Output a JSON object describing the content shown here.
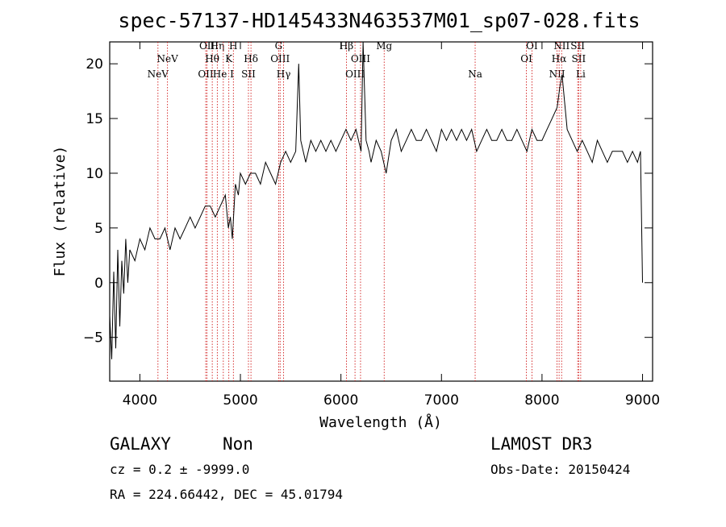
{
  "chart_data": {
    "type": "line",
    "title": "spec-57137-HD145433N463537M01_sp07-028.fits",
    "xlabel": "Wavelength (Å)",
    "ylabel": "Flux (relative)",
    "xlim": [
      3700,
      9100
    ],
    "ylim": [
      -9,
      22
    ],
    "xticks": [
      4000,
      5000,
      6000,
      7000,
      8000,
      9000
    ],
    "yticks": [
      -5,
      0,
      5,
      10,
      15,
      20
    ],
    "series": [
      {
        "name": "spectrum",
        "x": [
          3700,
          3720,
          3740,
          3760,
          3780,
          3800,
          3820,
          3840,
          3860,
          3880,
          3900,
          3950,
          4000,
          4050,
          4100,
          4150,
          4200,
          4250,
          4300,
          4350,
          4400,
          4450,
          4500,
          4550,
          4600,
          4650,
          4700,
          4750,
          4800,
          4850,
          4880,
          4900,
          4920,
          4950,
          4980,
          5000,
          5050,
          5100,
          5150,
          5200,
          5250,
          5300,
          5350,
          5400,
          5450,
          5500,
          5550,
          5580,
          5600,
          5650,
          5700,
          5750,
          5800,
          5850,
          5900,
          5950,
          6000,
          6050,
          6100,
          6150,
          6200,
          6220,
          6250,
          6280,
          6300,
          6350,
          6400,
          6450,
          6500,
          6550,
          6600,
          6650,
          6700,
          6750,
          6800,
          6850,
          6900,
          6950,
          7000,
          7050,
          7100,
          7150,
          7200,
          7250,
          7300,
          7350,
          7400,
          7450,
          7500,
          7550,
          7600,
          7650,
          7700,
          7750,
          7800,
          7850,
          7900,
          7950,
          8000,
          8050,
          8100,
          8150,
          8180,
          8200,
          8220,
          8250,
          8300,
          8350,
          8400,
          8450,
          8500,
          8550,
          8600,
          8650,
          8700,
          8750,
          8800,
          8850,
          8900,
          8950,
          8980,
          9000
        ],
        "y": [
          -3,
          -7,
          1,
          -6,
          3,
          -4,
          2,
          -1,
          4,
          0,
          3,
          2,
          4,
          3,
          5,
          4,
          4,
          5,
          3,
          5,
          4,
          5,
          6,
          5,
          6,
          7,
          7,
          6,
          7,
          8,
          5,
          6,
          4,
          9,
          8,
          10,
          9,
          10,
          10,
          9,
          11,
          10,
          9,
          11,
          12,
          11,
          12,
          20,
          13,
          11,
          13,
          12,
          13,
          12,
          13,
          12,
          13,
          14,
          13,
          14,
          12,
          22,
          13,
          12,
          11,
          13,
          12,
          10,
          13,
          14,
          12,
          13,
          14,
          13,
          13,
          14,
          13,
          12,
          14,
          13,
          14,
          13,
          14,
          13,
          14,
          12,
          13,
          14,
          13,
          13,
          14,
          13,
          13,
          14,
          13,
          12,
          14,
          13,
          13,
          14,
          15,
          16,
          18,
          19,
          17,
          14,
          13,
          12,
          13,
          12,
          11,
          13,
          12,
          11,
          12,
          12,
          12,
          11,
          12,
          11,
          12,
          0
        ]
      }
    ],
    "lines": [
      {
        "name": "NeV",
        "wavelength": 4180,
        "row": 3
      },
      {
        "name": "NeV",
        "wavelength": 4275,
        "row": 2
      },
      {
        "name": "OII",
        "wavelength": 4655,
        "row": 3
      },
      {
        "name": "OII",
        "wavelength": 4668,
        "row": 1
      },
      {
        "name": "Hθ",
        "wavelength": 4720,
        "row": 2
      },
      {
        "name": "Hη",
        "wavelength": 4770,
        "row": 1
      },
      {
        "name": "He I",
        "wavelength": 4830,
        "row": 3
      },
      {
        "name": "K",
        "wavelength": 4885,
        "row": 2
      },
      {
        "name": "H",
        "wavelength": 4930,
        "row": 1
      },
      {
        "name": "SII",
        "wavelength": 5080,
        "row": 3
      },
      {
        "name": "Hδ",
        "wavelength": 5105,
        "row": 2
      },
      {
        "name": "G",
        "wavelength": 5380,
        "row": 1
      },
      {
        "name": "OIII",
        "wavelength": 5395,
        "row": 2
      },
      {
        "name": "Hγ",
        "wavelength": 5430,
        "row": 3
      },
      {
        "name": "Hβ",
        "wavelength": 6055,
        "row": 1
      },
      {
        "name": "OIII",
        "wavelength": 6140,
        "row": 3
      },
      {
        "name": "OIII",
        "wavelength": 6195,
        "row": 2
      },
      {
        "name": "Mg",
        "wavelength": 6430,
        "row": 1
      },
      {
        "name": "Na",
        "wavelength": 7335,
        "row": 3
      },
      {
        "name": "OI",
        "wavelength": 7845,
        "row": 2
      },
      {
        "name": "OI",
        "wavelength": 7900,
        "row": 1
      },
      {
        "name": "NII",
        "wavelength": 8150,
        "row": 3
      },
      {
        "name": "Hα",
        "wavelength": 8170,
        "row": 2
      },
      {
        "name": "NII",
        "wavelength": 8195,
        "row": 1
      },
      {
        "name": "SII",
        "wavelength": 8355,
        "row": 1
      },
      {
        "name": "SII",
        "wavelength": 8365,
        "row": 2
      },
      {
        "name": "Li",
        "wavelength": 8385,
        "row": 3
      }
    ]
  },
  "info": {
    "class": "GALAXY",
    "subclass": "Non",
    "survey": "LAMOST DR3",
    "cz": "cz = 0.2 ± -9999.0",
    "obs_date": "Obs-Date: 20150424",
    "radec": "RA = 224.66442, DEC =  45.01794"
  }
}
